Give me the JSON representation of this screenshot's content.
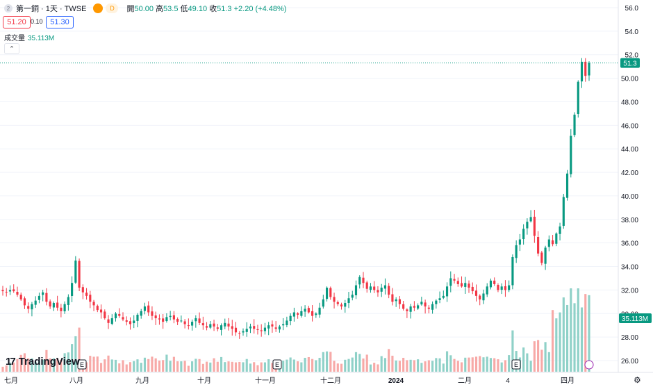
{
  "header": {
    "symbol_icon": "2",
    "title": "第一銅 · 1天 · TWSE",
    "badge": "D",
    "open_label": "開",
    "open": "50.00",
    "high_label": "高",
    "high": "53.5",
    "low_label": "低",
    "low": "49.10",
    "close_label": "收",
    "close": "51.3",
    "change": "+2.20 (+4.48%)"
  },
  "bid": "51.20",
  "spread": "0.10",
  "ask": "51.30",
  "volume": {
    "label": "成交量",
    "value": "35.113M"
  },
  "collapse_icon": "chevron-up-icon",
  "logo": {
    "mark": "17",
    "text": "TradingView"
  },
  "settings_icon": "gear-icon",
  "colors": {
    "up": "#089981",
    "down": "#f23645",
    "up_vol": "#8fd1c8",
    "down_vol": "#f7a9a7",
    "grid": "#f0f3fa"
  },
  "price_label": "51.3",
  "volume_label": "35.113M",
  "chart_data": {
    "type": "candlestick",
    "y_axis": {
      "min": 25,
      "max": 56,
      "ticks": [
        "26.00",
        "28.00",
        "30.00",
        "32.00",
        "34.00",
        "36.00",
        "38.00",
        "40.00",
        "42.00",
        "44.00",
        "46.00",
        "48.00",
        "50.00",
        "52.0",
        "54.0",
        "56.0"
      ]
    },
    "x_axis": {
      "labels": [
        "七月",
        "八月",
        "九月",
        "十月",
        "十一月",
        "十二月",
        "2024",
        "二月",
        "4",
        "四月"
      ]
    },
    "last_price": 51.3,
    "last_volume": "35.113M",
    "events": [
      "E",
      "E",
      "E"
    ],
    "closes": [
      31.9,
      31.8,
      32.0,
      31.9,
      31.6,
      31.2,
      30.7,
      30.4,
      30.8,
      31.1,
      31.5,
      31.8,
      31.0,
      30.6,
      30.9,
      30.5,
      30.2,
      30.8,
      31.4,
      32.6,
      34.5,
      32.2,
      31.8,
      31.5,
      31.0,
      30.7,
      30.3,
      30.1,
      29.6,
      29.2,
      29.6,
      30.0,
      29.8,
      29.5,
      29.3,
      29.1,
      29.4,
      29.9,
      30.2,
      30.6,
      30.1,
      29.8,
      29.6,
      29.5,
      29.3,
      29.7,
      29.8,
      29.5,
      29.3,
      29.4,
      29.1,
      29.0,
      29.3,
      29.6,
      29.2,
      29.0,
      28.8,
      29.1,
      28.9,
      28.7,
      29.0,
      29.2,
      28.9,
      28.7,
      28.4,
      28.3,
      28.5,
      28.7,
      28.9,
      28.7,
      28.6,
      28.5,
      28.8,
      29.0,
      28.9,
      28.7,
      28.9,
      29.1,
      29.4,
      29.8,
      30.1,
      29.9,
      30.2,
      30.4,
      30.1,
      29.8,
      30.0,
      30.5,
      31.2,
      32.2,
      31.4,
      31.0,
      30.8,
      30.6,
      30.9,
      31.3,
      31.6,
      32.4,
      33.1,
      32.6,
      32.1,
      32.3,
      32.0,
      31.8,
      32.2,
      32.4,
      31.6,
      31.0,
      31.2,
      30.8,
      30.4,
      30.2,
      30.6,
      30.5,
      30.7,
      31.0,
      30.6,
      30.4,
      30.8,
      31.1,
      31.3,
      31.5,
      32.3,
      33.0,
      32.8,
      32.5,
      32.3,
      32.6,
      32.2,
      31.9,
      31.5,
      31.2,
      31.7,
      32.3,
      32.8,
      32.5,
      32.0,
      32.3,
      32.0,
      32.4,
      34.8,
      35.8,
      36.3,
      37.2,
      37.8,
      38.2,
      36.6,
      35.1,
      34.3,
      35.6,
      36.3,
      35.9,
      36.8,
      37.4,
      39.9,
      41.9,
      45.1,
      46.9,
      49.7,
      51.4,
      50.2,
      51.3
    ],
    "volume_scale": "relative"
  }
}
